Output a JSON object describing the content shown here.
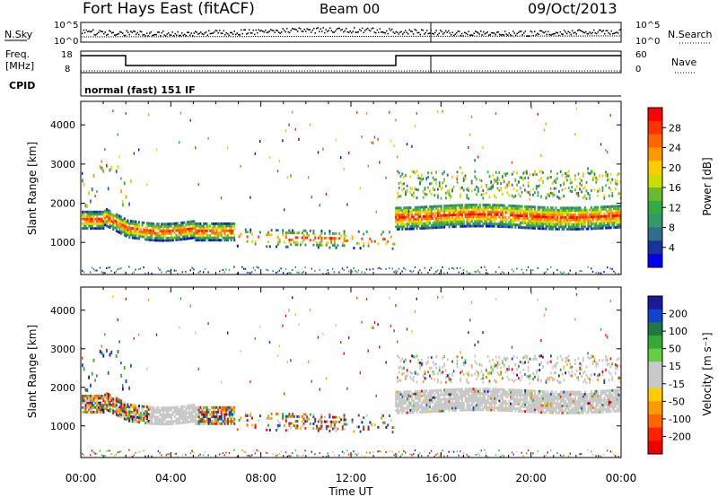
{
  "header": {
    "station": "Fort Hays East (fitACF)",
    "beam": "Beam 00",
    "date": "09/Oct/2013"
  },
  "summary": {
    "nsky_label": "N.Sky",
    "nsearch_label": "N.Search",
    "freq_label_1": "Freq.",
    "freq_label_2": "[MHz]",
    "nave_label": "Nave",
    "cpid_label": "CPID",
    "cpid_text": "normal (fast) 151 IF",
    "noise_ticks_left": [
      "10^5",
      "10^0"
    ],
    "noise_ticks_right": [
      "10^5",
      "10^0"
    ],
    "freq_ticks": [
      "18",
      "8"
    ],
    "nave_ticks": [
      "60",
      "0"
    ]
  },
  "chart_data": [
    {
      "type": "heatmap",
      "name": "power",
      "ylabel": "Slant Range [km]",
      "xlabel": "Time UT",
      "xlim": [
        0,
        24
      ],
      "ylim": [
        180,
        4600
      ],
      "xticks": [
        "00:00",
        "04:00",
        "08:00",
        "12:00",
        "16:00",
        "20:00",
        "00:00"
      ],
      "yticks": [
        1000,
        2000,
        3000,
        4000
      ],
      "colorbar": {
        "label": "Power [dB]",
        "ticks": [
          "28",
          "24",
          "20",
          "16",
          "12",
          "8",
          "4"
        ],
        "colors": [
          "#ff0000",
          "#ff3300",
          "#ff6600",
          "#ff9900",
          "#ffcc00",
          "#ccdd00",
          "#66bb33",
          "#33aa44",
          "#339966",
          "#2e6e8c",
          "#1a3399",
          "#0000ee"
        ]
      }
    },
    {
      "type": "heatmap",
      "name": "velocity",
      "ylabel": "Slant Range [km]",
      "xlabel": "Time UT",
      "xlim": [
        0,
        24
      ],
      "ylim": [
        180,
        4600
      ],
      "xticks": [
        "00:00",
        "04:00",
        "08:00",
        "12:00",
        "16:00",
        "20:00",
        "00:00"
      ],
      "yticks": [
        1000,
        2000,
        3000,
        4000
      ],
      "colorbar": {
        "label": "Velocity [m s⁻¹]",
        "ticks": [
          "200",
          "100",
          "50",
          "15",
          "-15",
          "-50",
          "-100",
          "-200"
        ],
        "colors": [
          "#1a1a99",
          "#1144cc",
          "#227744",
          "#33aa33",
          "#66cc44",
          "#c8c8c8",
          "#c8c8c8",
          "#ffcc00",
          "#ff9900",
          "#ff6600",
          "#ff2200",
          "#ee0000"
        ]
      }
    }
  ]
}
